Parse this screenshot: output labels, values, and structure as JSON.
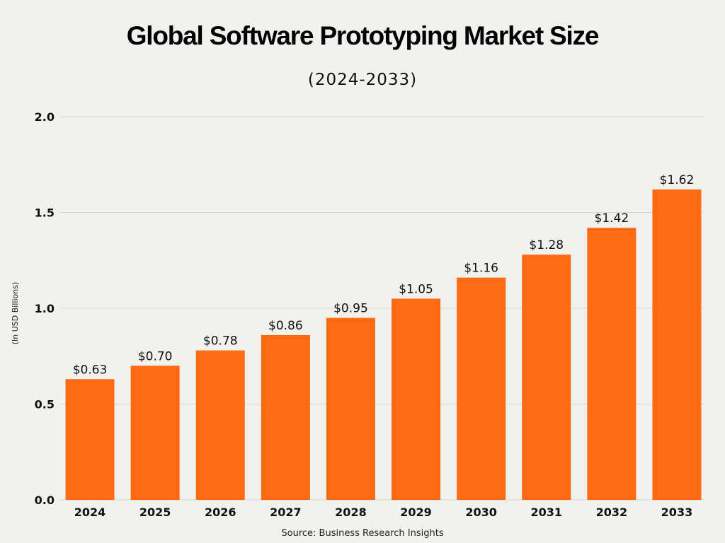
{
  "chart_data": {
    "type": "bar",
    "title": "Global Software Prototyping Market Size",
    "subtitle": "(2024-2033)",
    "ylabel": "(In USD Billions)",
    "xlabel": "",
    "source": "Source: Business Research Insights",
    "categories": [
      "2024",
      "2025",
      "2026",
      "2027",
      "2028",
      "2029",
      "2030",
      "2031",
      "2032",
      "2033"
    ],
    "values": [
      0.63,
      0.7,
      0.78,
      0.86,
      0.95,
      1.05,
      1.16,
      1.28,
      1.42,
      1.62
    ],
    "data_labels": [
      "$0.63",
      "$0.70",
      "$0.78",
      "$0.86",
      "$0.95",
      "$1.05",
      "$1.16",
      "$1.28",
      "$1.42",
      "$1.62"
    ],
    "yticks": [
      "0.0",
      "0.5",
      "1.0",
      "1.5",
      "2.0"
    ],
    "ylim": [
      0,
      2.0
    ],
    "grid": true,
    "bar_color": "#FF6A13"
  }
}
